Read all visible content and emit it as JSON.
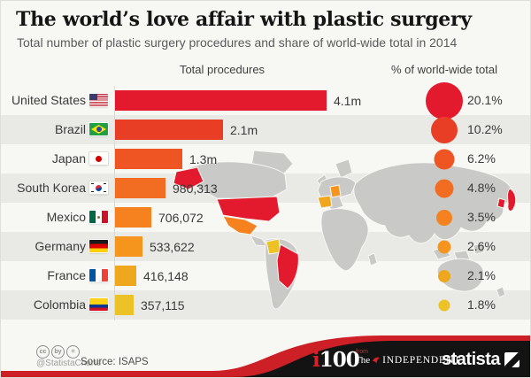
{
  "title": "The world’s love affair with plastic surgery",
  "subtitle": "Total number of plastic surgery procedures and share of world-wide total in 2014",
  "headers": {
    "procedures": "Total procedures",
    "share": "% of world-wide total"
  },
  "chart_data": {
    "type": "bar",
    "orientation": "horizontal",
    "title": "The world’s love affair with plastic surgery",
    "subtitle": "Total number of plastic surgery procedures and share of world-wide total in 2014",
    "categories": [
      "United States",
      "Brazil",
      "Japan",
      "South Korea",
      "Mexico",
      "Germany",
      "France",
      "Colombia"
    ],
    "series": [
      {
        "name": "Total procedures",
        "values": [
          4100000,
          2100000,
          1300000,
          980313,
          706072,
          533622,
          416148,
          357115
        ],
        "labels": [
          "4.1m",
          "2.1m",
          "1.3m",
          "980,313",
          "706,072",
          "533,622",
          "416,148",
          "357,115"
        ]
      },
      {
        "name": "% of world-wide total",
        "values": [
          20.1,
          10.2,
          6.2,
          4.8,
          3.5,
          2.6,
          2.1,
          1.8
        ],
        "labels": [
          "20.1%",
          "10.2%",
          "6.2%",
          "4.8%",
          "3.5%",
          "2.6%",
          "2.1%",
          "1.8%"
        ]
      }
    ],
    "colors": [
      "#e31a2d",
      "#e93e26",
      "#ef5423",
      "#f26c21",
      "#f5821e",
      "#f6951d",
      "#efa81e",
      "#ecc227"
    ],
    "xlim": [
      0,
      4100000
    ],
    "legend_position": "none",
    "grid": false,
    "year": "2014",
    "source": "ISAPS"
  },
  "rows": [
    {
      "country": "United States",
      "flag": "us",
      "value": 4100000,
      "value_label": "4.1m",
      "pct": 20.1,
      "pct_label": "20.1%",
      "color": "#e31a2d"
    },
    {
      "country": "Brazil",
      "flag": "br",
      "value": 2100000,
      "value_label": "2.1m",
      "pct": 10.2,
      "pct_label": "10.2%",
      "color": "#e93e26"
    },
    {
      "country": "Japan",
      "flag": "jp",
      "value": 1300000,
      "value_label": "1.3m",
      "pct": 6.2,
      "pct_label": "6.2%",
      "color": "#ef5423"
    },
    {
      "country": "South Korea",
      "flag": "kr",
      "value": 980313,
      "value_label": "980,313",
      "pct": 4.8,
      "pct_label": "4.8%",
      "color": "#f26c21"
    },
    {
      "country": "Mexico",
      "flag": "mx",
      "value": 706072,
      "value_label": "706,072",
      "pct": 3.5,
      "pct_label": "3.5%",
      "color": "#f5821e"
    },
    {
      "country": "Germany",
      "flag": "de",
      "value": 533622,
      "value_label": "533,622",
      "pct": 2.6,
      "pct_label": "2.6%",
      "color": "#f6951d"
    },
    {
      "country": "France",
      "flag": "fr",
      "value": 416148,
      "value_label": "416,148",
      "pct": 2.1,
      "pct_label": "2.1%",
      "color": "#efa81e"
    },
    {
      "country": "Colombia",
      "flag": "co",
      "value": 357115,
      "value_label": "357,115",
      "pct": 1.8,
      "pct_label": "1.8%",
      "color": "#ecc227"
    }
  ],
  "footer": {
    "handle": "@StatistaCharts",
    "source": "Source: ISAPS",
    "cc": [
      "cc",
      "by",
      "="
    ],
    "i100": {
      "i": "i",
      "num": "100"
    },
    "independent": {
      "from": "from",
      "the": "The",
      "name": "INDEPENDENT"
    },
    "statista": "statista"
  }
}
